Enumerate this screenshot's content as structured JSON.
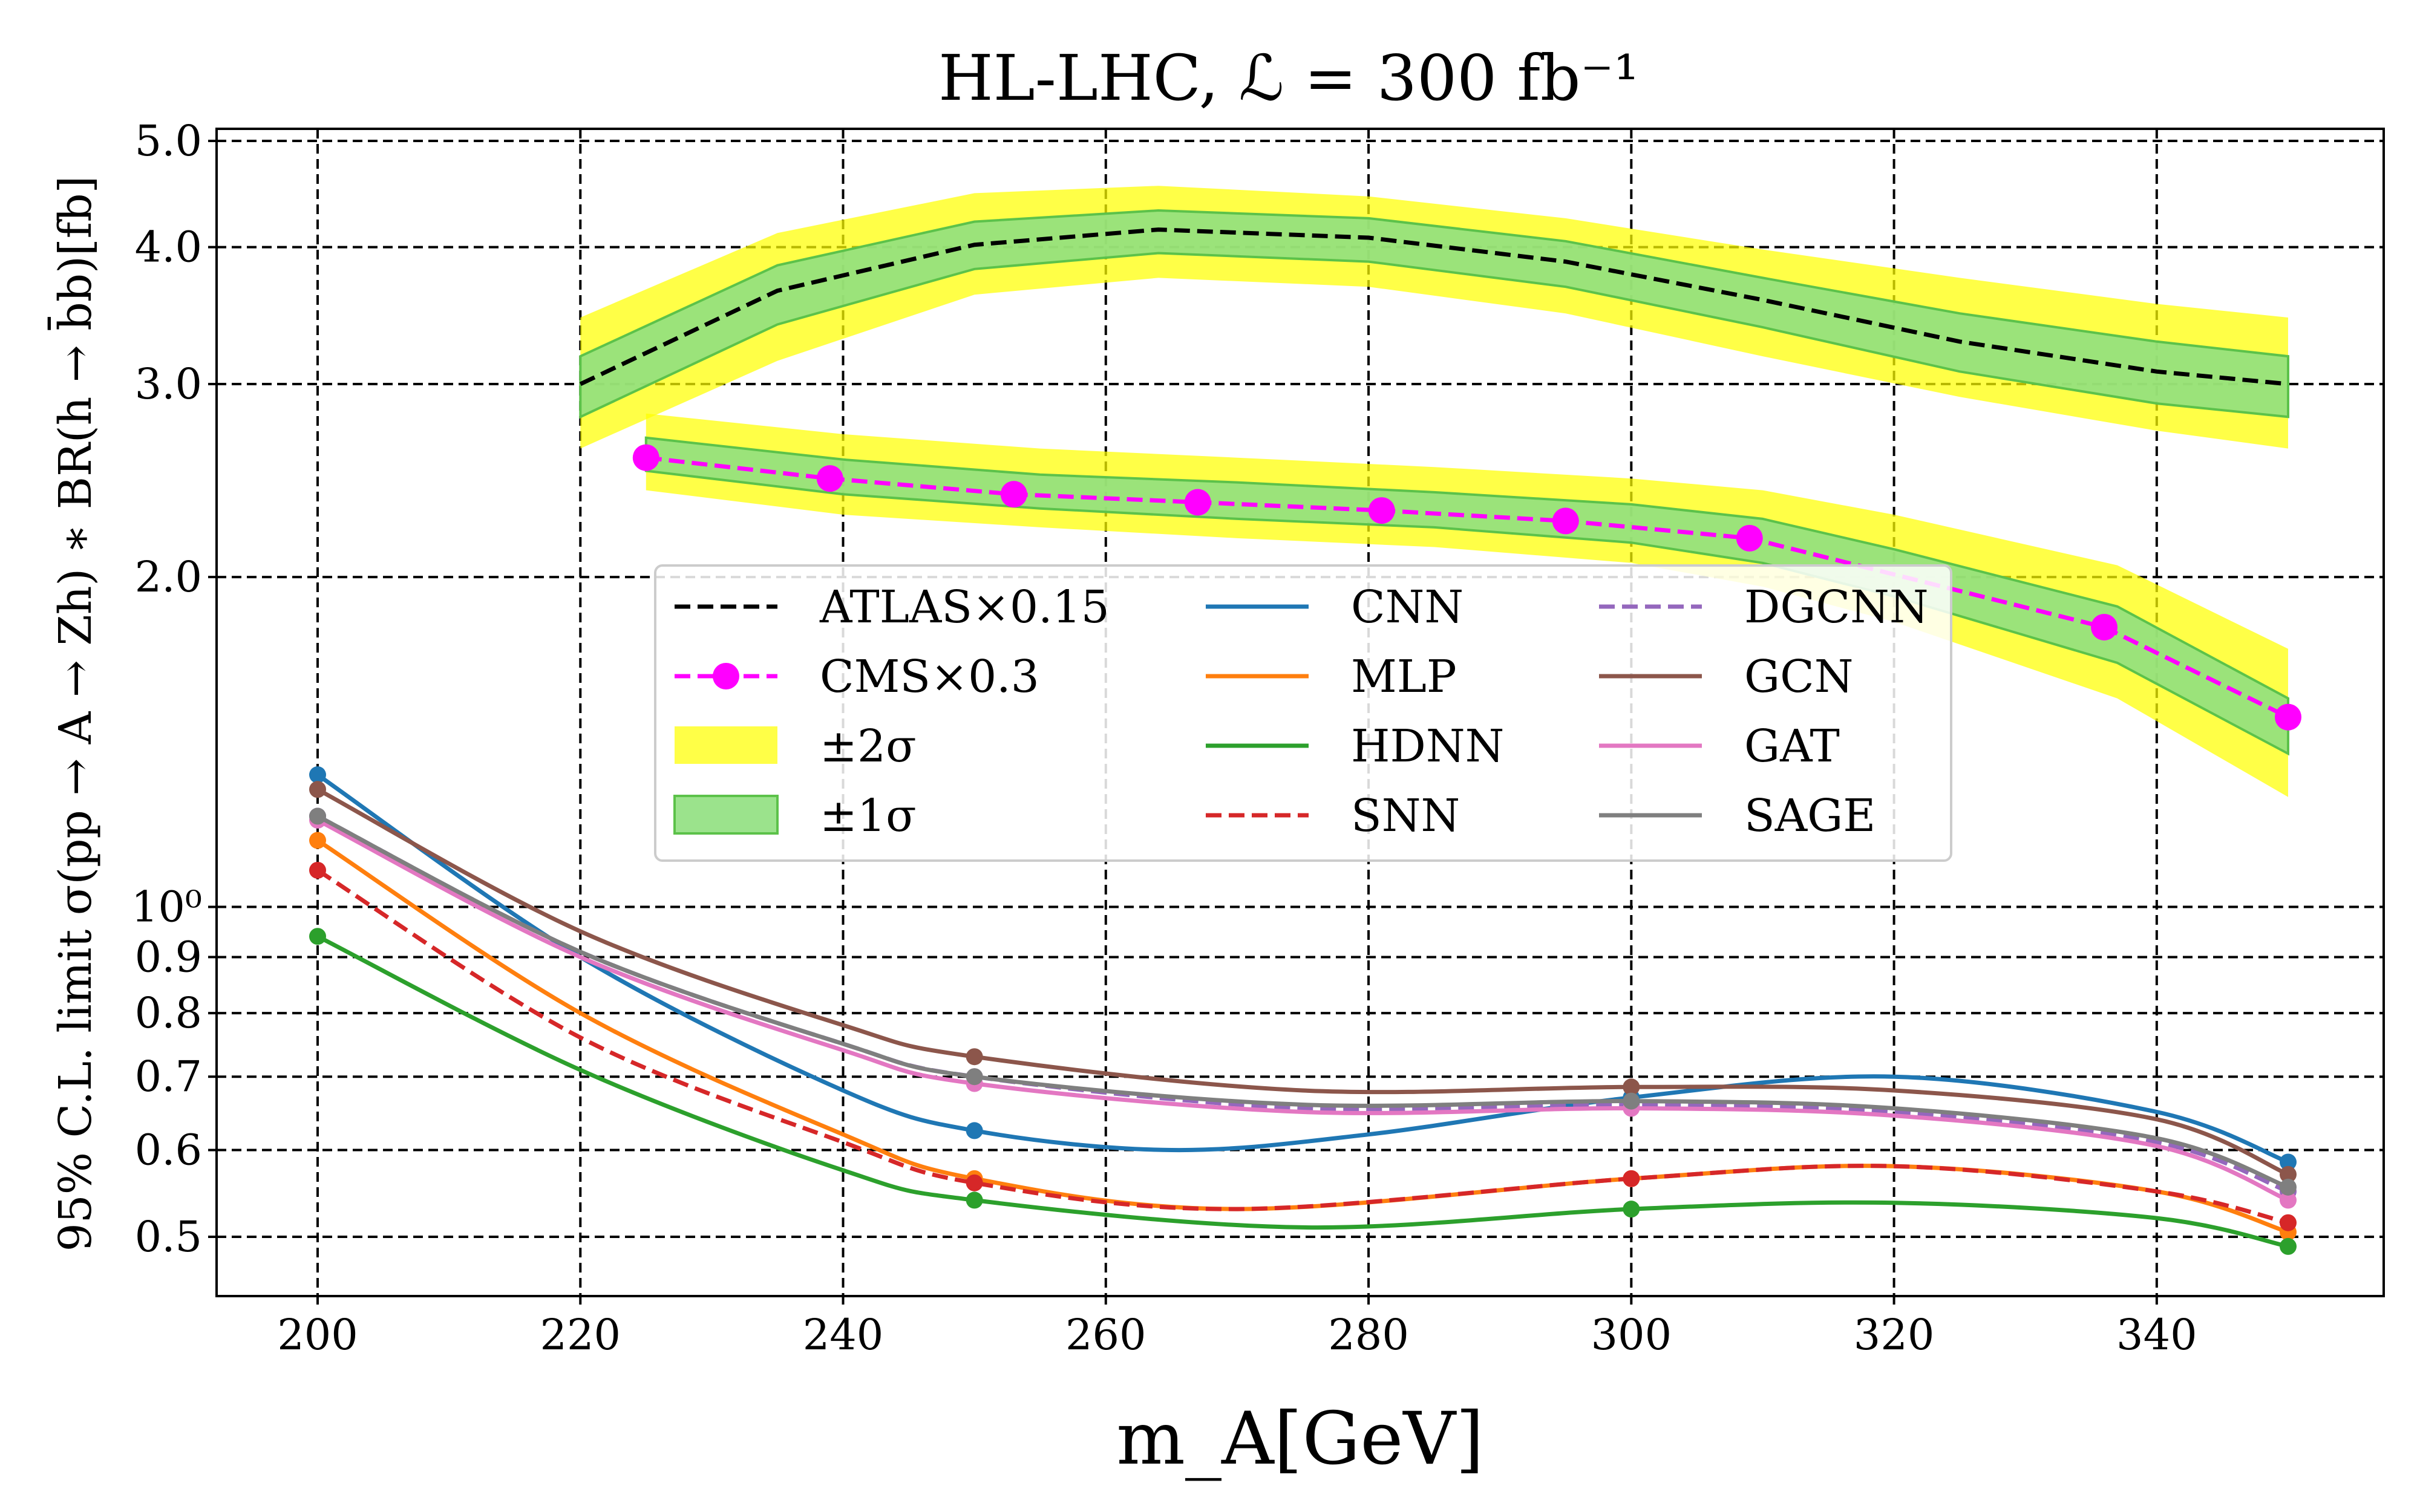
{
  "chart_data": {
    "type": "line",
    "title": "HL-LHC, ℒ = 300 fb⁻¹",
    "xlabel": "m_A[GeV]",
    "ylabel": "95% C.L. limit σ(pp → A → Zh) ∗ BR(h → b̄b)[fb]",
    "xlim": [
      192.5,
      357.5
    ],
    "ylim": [
      0.45,
      5.2
    ],
    "yscale": "log",
    "grid": true,
    "xticks": [
      200,
      220,
      240,
      260,
      280,
      300,
      320,
      340
    ],
    "xtick_labels": [
      "200",
      "220",
      "240",
      "260",
      "280",
      "300",
      "320",
      "340"
    ],
    "yticks": [
      0.5,
      0.6,
      0.7,
      0.8,
      0.9,
      1.0,
      2.0,
      3.0,
      4.0,
      5.0
    ],
    "ytick_labels": [
      "0.5",
      "0.6",
      "0.7",
      "0.8",
      "0.9",
      "10⁰",
      "2.0",
      "3.0",
      "4.0",
      "5.0"
    ],
    "legend_position": "center",
    "bands": [
      {
        "name": "±2σ",
        "color": "#ffff00",
        "x": [
          220,
          235,
          250,
          264,
          280,
          295,
          310,
          325,
          340,
          350
        ],
        "upper": [
          3.45,
          4.12,
          4.48,
          4.55,
          4.45,
          4.25,
          3.98,
          3.75,
          3.55,
          3.45
        ],
        "lower": [
          2.62,
          3.15,
          3.62,
          3.75,
          3.68,
          3.48,
          3.18,
          2.92,
          2.72,
          2.62
        ]
      },
      {
        "name": "±1σ",
        "color": "#90e080",
        "x": [
          220,
          235,
          250,
          264,
          280,
          295,
          310,
          325,
          340,
          350
        ],
        "upper": [
          3.18,
          3.85,
          4.22,
          4.32,
          4.25,
          4.05,
          3.75,
          3.48,
          3.28,
          3.18
        ],
        "lower": [
          2.8,
          3.4,
          3.82,
          3.95,
          3.88,
          3.68,
          3.38,
          3.08,
          2.88,
          2.8
        ]
      },
      {
        "name": "±2σ",
        "color": "#ffff00",
        "x": [
          225,
          240,
          255,
          270,
          285,
          300,
          310,
          320,
          337,
          350
        ],
        "upper": [
          2.82,
          2.7,
          2.62,
          2.57,
          2.52,
          2.46,
          2.4,
          2.28,
          2.05,
          1.72
        ],
        "lower": [
          2.4,
          2.28,
          2.22,
          2.17,
          2.13,
          2.06,
          1.96,
          1.82,
          1.55,
          1.26
        ]
      },
      {
        "name": "±1σ",
        "color": "#90e080",
        "x": [
          225,
          240,
          255,
          270,
          285,
          300,
          310,
          320,
          337,
          350
        ],
        "upper": [
          2.68,
          2.56,
          2.48,
          2.44,
          2.39,
          2.33,
          2.26,
          2.12,
          1.88,
          1.55
        ],
        "lower": [
          2.5,
          2.38,
          2.31,
          2.26,
          2.22,
          2.15,
          2.06,
          1.92,
          1.67,
          1.38
        ]
      }
    ],
    "series": [
      {
        "name": "ATLAS×0.15",
        "color": "#000000",
        "dash": true,
        "markers": false,
        "x": [
          220,
          235,
          250,
          264,
          280,
          295,
          310,
          325,
          340,
          350
        ],
        "y": [
          3.0,
          3.65,
          4.02,
          4.15,
          4.08,
          3.88,
          3.58,
          3.28,
          3.08,
          3.0
        ]
      },
      {
        "name": "CMS×0.3",
        "color": "#ff00ff",
        "dash": true,
        "markers": true,
        "x": [
          225,
          239,
          253,
          267,
          281,
          295,
          309,
          336,
          350
        ],
        "y": [
          2.57,
          2.46,
          2.38,
          2.34,
          2.3,
          2.25,
          2.17,
          1.8,
          1.49
        ]
      },
      {
        "name": "CNN",
        "color": "#1f77b4",
        "dash": false,
        "x": [
          200,
          220,
          240,
          250,
          265,
          280,
          300,
          320,
          340,
          350
        ],
        "y": [
          1.32,
          0.9,
          0.68,
          0.625,
          0.6,
          0.62,
          0.67,
          0.7,
          0.65,
          0.585
        ]
      },
      {
        "name": "MLP",
        "color": "#ff7f0e",
        "dash": false,
        "x": [
          200,
          220,
          240,
          250,
          270,
          300,
          320,
          340,
          350
        ],
        "y": [
          1.15,
          0.8,
          0.62,
          0.565,
          0.53,
          0.565,
          0.58,
          0.55,
          0.505
        ]
      },
      {
        "name": "HDNN",
        "color": "#2ca02c",
        "dash": false,
        "x": [
          200,
          220,
          240,
          250,
          275,
          300,
          320,
          340,
          350
        ],
        "y": [
          0.94,
          0.71,
          0.575,
          0.54,
          0.51,
          0.53,
          0.537,
          0.52,
          0.49
        ]
      },
      {
        "name": "SNN",
        "color": "#d62728",
        "dash": true,
        "x": [
          200,
          220,
          240,
          250,
          270,
          300,
          320,
          340,
          350
        ],
        "y": [
          1.08,
          0.76,
          0.61,
          0.56,
          0.53,
          0.565,
          0.58,
          0.55,
          0.515
        ]
      },
      {
        "name": "DGCNN",
        "color": "#9467bd",
        "dash": true,
        "x": [
          200,
          220,
          240,
          250,
          275,
          300,
          320,
          340,
          350
        ],
        "y": [
          1.21,
          0.91,
          0.75,
          0.7,
          0.655,
          0.66,
          0.65,
          0.61,
          0.55
        ]
      },
      {
        "name": "GCN",
        "color": "#8c564b",
        "dash": false,
        "x": [
          200,
          220,
          240,
          250,
          275,
          300,
          320,
          340,
          350
        ],
        "y": [
          1.28,
          0.95,
          0.78,
          0.73,
          0.68,
          0.685,
          0.68,
          0.64,
          0.57
        ]
      },
      {
        "name": "GAT",
        "color": "#e377c2",
        "dash": false,
        "x": [
          200,
          220,
          240,
          250,
          275,
          300,
          320,
          340,
          350
        ],
        "y": [
          1.2,
          0.9,
          0.74,
          0.69,
          0.65,
          0.655,
          0.645,
          0.605,
          0.54
        ]
      },
      {
        "name": "SAGE",
        "color": "#7f7f7f",
        "dash": false,
        "x": [
          200,
          220,
          240,
          250,
          275,
          300,
          320,
          340,
          350
        ],
        "y": [
          1.21,
          0.91,
          0.75,
          0.7,
          0.66,
          0.665,
          0.655,
          0.615,
          0.555
        ]
      }
    ],
    "legend": [
      [
        "ATLAS×0.15",
        "CMS×0.3",
        "±2σ",
        "±1σ"
      ],
      [
        "CNN",
        "MLP",
        "HDNN",
        "SNN"
      ],
      [
        "DGCNN",
        "GCN",
        "GAT",
        "SAGE"
      ]
    ]
  }
}
